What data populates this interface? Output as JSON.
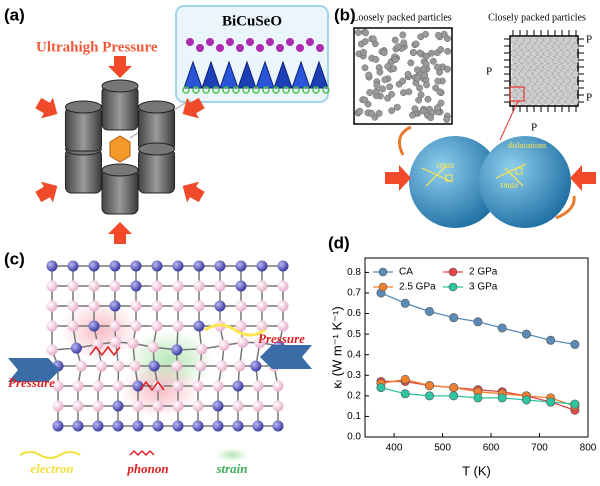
{
  "panel_a": {
    "label": "(a)",
    "pressure": "Ultrahigh Pressure",
    "material": "BiCuSeO"
  },
  "panel_b": {
    "label": "(b)",
    "loose": "Loosely packed particles",
    "close": "Closely packed particles",
    "pressure_labels": [
      "P",
      "P",
      "P",
      "P"
    ],
    "dislocations": "dislocations",
    "tau": [
      "τmax",
      "τmax"
    ]
  },
  "panel_c": {
    "label": "(c)",
    "pressure_left": "Pressure",
    "pressure_right": "Pressure",
    "legend": [
      "electron",
      "phonon",
      "strain"
    ]
  },
  "panel_d": {
    "label": "(d)"
  },
  "chart_data": {
    "type": "line",
    "x_label": "T (K)",
    "y_label": "κₗ (W m⁻¹ K⁻¹)",
    "x": [
      373,
      423,
      473,
      523,
      573,
      623,
      673,
      723,
      773
    ],
    "series": [
      {
        "name": "CA",
        "color": "#5a8ab5",
        "values": [
          0.7,
          0.65,
          0.61,
          0.58,
          0.56,
          0.53,
          0.5,
          0.47,
          0.45
        ]
      },
      {
        "name": "2 GPa",
        "color": "#e8454a",
        "values": [
          0.27,
          0.27,
          0.25,
          0.24,
          0.23,
          0.22,
          0.2,
          0.17,
          0.13
        ]
      },
      {
        "name": "2.5 GPa",
        "color": "#f08030",
        "values": [
          0.26,
          0.28,
          0.25,
          0.24,
          0.22,
          0.21,
          0.2,
          0.19,
          0.15
        ]
      },
      {
        "name": "3 GPa",
        "color": "#2ec4a0",
        "values": [
          0.24,
          0.21,
          0.2,
          0.2,
          0.19,
          0.19,
          0.18,
          0.17,
          0.16
        ]
      }
    ],
    "xlim": [
      340,
      800
    ],
    "ylim": [
      0,
      0.87
    ],
    "xticks": [
      400,
      500,
      600,
      700,
      800
    ],
    "yticks": [
      {
        "value": 0,
        "label": "0.0"
      },
      0.1,
      0.2,
      0.3,
      0.4,
      0.5,
      0.6,
      0.7,
      0.8
    ]
  }
}
